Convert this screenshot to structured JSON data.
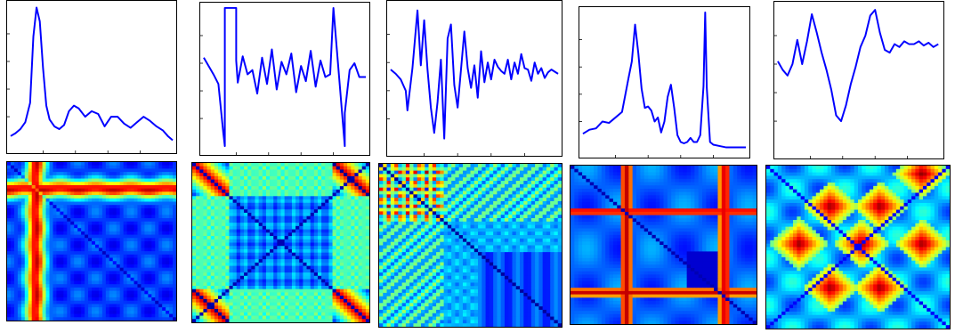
{
  "figure": {
    "description_color_map": "jet"
  },
  "chart_data": [
    {
      "type": "line",
      "series": [
        {
          "color": "#0000ff",
          "x": [
            0,
            0.03,
            0.06,
            0.09,
            0.12,
            0.14,
            0.16,
            0.18,
            0.2,
            0.22,
            0.24,
            0.27,
            0.3,
            0.33,
            0.36,
            0.39,
            0.42,
            0.46,
            0.5,
            0.54,
            0.58,
            0.62,
            0.66,
            0.7,
            0.74,
            0.78,
            0.82,
            0.86,
            0.9,
            0.94,
            0.97,
            1.0
          ],
          "y": [
            0.06,
            0.08,
            0.11,
            0.16,
            0.3,
            0.78,
            0.99,
            0.89,
            0.55,
            0.28,
            0.18,
            0.13,
            0.11,
            0.14,
            0.24,
            0.28,
            0.26,
            0.2,
            0.24,
            0.22,
            0.13,
            0.2,
            0.2,
            0.15,
            0.12,
            0.16,
            0.2,
            0.17,
            0.13,
            0.1,
            0.06,
            0.03
          ]
        }
      ],
      "ylim": [
        0,
        1
      ]
    },
    {
      "type": "line",
      "series": [
        {
          "color": "#0000ff",
          "x": [
            0,
            0.03,
            0.06,
            0.09,
            0.12,
            0.13,
            0.13,
            0.2,
            0.2,
            0.21,
            0.24,
            0.27,
            0.3,
            0.33,
            0.36,
            0.39,
            0.42,
            0.45,
            0.48,
            0.51,
            0.54,
            0.57,
            0.6,
            0.63,
            0.66,
            0.69,
            0.72,
            0.75,
            0.78,
            0.8,
            0.8,
            0.87,
            0.87,
            0.9,
            0.93,
            0.96,
            1.0
          ],
          "y": [
            0.64,
            0.58,
            0.52,
            0.45,
            0.1,
            0.0,
            1.0,
            1.0,
            0.62,
            0.46,
            0.65,
            0.52,
            0.55,
            0.38,
            0.64,
            0.45,
            0.7,
            0.41,
            0.61,
            0.52,
            0.67,
            0.39,
            0.58,
            0.47,
            0.69,
            0.43,
            0.62,
            0.5,
            0.52,
            1.0,
            1.0,
            0.0,
            0.24,
            0.55,
            0.6,
            0.5,
            0.5
          ]
        }
      ],
      "ylim": [
        0,
        1
      ]
    },
    {
      "type": "line",
      "series": [
        {
          "color": "#0000ff",
          "x": [
            0,
            0.03,
            0.06,
            0.09,
            0.1,
            0.13,
            0.16,
            0.18,
            0.2,
            0.22,
            0.24,
            0.26,
            0.28,
            0.3,
            0.32,
            0.34,
            0.36,
            0.38,
            0.4,
            0.42,
            0.44,
            0.46,
            0.48,
            0.5,
            0.52,
            0.54,
            0.56,
            0.58,
            0.6,
            0.62,
            0.64,
            0.66,
            0.68,
            0.7,
            0.72,
            0.74,
            0.76,
            0.78,
            0.8,
            0.82,
            0.84,
            0.86,
            0.88,
            0.9,
            0.92,
            0.94,
            0.96,
            1.0
          ],
          "y": [
            0.55,
            0.52,
            0.48,
            0.4,
            0.26,
            0.56,
            0.97,
            0.58,
            0.9,
            0.55,
            0.28,
            0.1,
            0.32,
            0.62,
            0.06,
            0.77,
            0.87,
            0.44,
            0.28,
            0.55,
            0.82,
            0.56,
            0.42,
            0.58,
            0.35,
            0.68,
            0.46,
            0.6,
            0.48,
            0.62,
            0.57,
            0.54,
            0.52,
            0.62,
            0.48,
            0.6,
            0.52,
            0.66,
            0.56,
            0.55,
            0.47,
            0.6,
            0.52,
            0.56,
            0.49,
            0.53,
            0.55,
            0.52
          ]
        }
      ],
      "ylim": [
        0,
        1
      ]
    },
    {
      "type": "line",
      "series": [
        {
          "color": "#0000ff",
          "x": [
            0,
            0.04,
            0.08,
            0.12,
            0.16,
            0.2,
            0.24,
            0.28,
            0.3,
            0.32,
            0.34,
            0.36,
            0.38,
            0.4,
            0.42,
            0.44,
            0.46,
            0.48,
            0.5,
            0.52,
            0.54,
            0.56,
            0.58,
            0.6,
            0.62,
            0.64,
            0.66,
            0.68,
            0.7,
            0.72,
            0.74,
            0.75,
            0.76,
            0.78,
            0.8,
            0.84,
            0.88,
            0.92,
            0.96,
            1.0
          ],
          "y": [
            0.11,
            0.14,
            0.15,
            0.2,
            0.19,
            0.23,
            0.27,
            0.52,
            0.64,
            0.91,
            0.7,
            0.44,
            0.3,
            0.31,
            0.28,
            0.2,
            0.23,
            0.12,
            0.2,
            0.38,
            0.47,
            0.3,
            0.1,
            0.05,
            0.04,
            0.05,
            0.08,
            0.05,
            0.05,
            0.1,
            0.46,
            1.0,
            0.45,
            0.05,
            0.03,
            0.02,
            0.01,
            0.01,
            0.01,
            0.01
          ]
        }
      ],
      "ylim": [
        0,
        1
      ]
    },
    {
      "type": "line",
      "series": [
        {
          "color": "#0000ff",
          "x": [
            0,
            0.03,
            0.06,
            0.09,
            0.12,
            0.15,
            0.18,
            0.21,
            0.24,
            0.27,
            0.3,
            0.33,
            0.36,
            0.39,
            0.42,
            0.45,
            0.48,
            0.51,
            0.54,
            0.57,
            0.6,
            0.63,
            0.66,
            0.69,
            0.72,
            0.75,
            0.78,
            0.81,
            0.84,
            0.87,
            0.9,
            0.93,
            0.96,
            0.99
          ],
          "y": [
            0.62,
            0.56,
            0.52,
            0.6,
            0.77,
            0.6,
            0.76,
            0.95,
            0.82,
            0.68,
            0.56,
            0.42,
            0.24,
            0.2,
            0.31,
            0.46,
            0.58,
            0.72,
            0.8,
            0.94,
            0.98,
            0.82,
            0.7,
            0.68,
            0.74,
            0.72,
            0.76,
            0.74,
            0.74,
            0.76,
            0.73,
            0.75,
            0.72,
            0.74
          ]
        }
      ],
      "ylim": [
        0,
        1
      ]
    },
    {
      "type": "heatmap",
      "colormap": "jet",
      "pattern": "peak-cross",
      "params": {
        "cx": 0.17,
        "cy": 0.17,
        "width": 0.055
      }
    },
    {
      "type": "heatmap",
      "colormap": "jet",
      "pattern": "corner-blocks",
      "params": {
        "edge": 0.2
      }
    },
    {
      "type": "heatmap",
      "colormap": "jet",
      "pattern": "diagonal-band",
      "params": {
        "hot": 0.35
      }
    },
    {
      "type": "heatmap",
      "colormap": "jet",
      "pattern": "line-grid",
      "params": {
        "vx": [
          0.3,
          0.83
        ],
        "hy": [
          0.29,
          0.8
        ]
      }
    },
    {
      "type": "heatmap",
      "colormap": "jet",
      "pattern": "diamond-blobs",
      "params": {
        "centers": [
          [
            0.35,
            0.5
          ],
          [
            0.5,
            0.3
          ],
          [
            0.5,
            0.7
          ],
          [
            0.2,
            0.5
          ],
          [
            0.65,
            0.5
          ],
          [
            0.5,
            0.5
          ]
        ]
      }
    }
  ]
}
